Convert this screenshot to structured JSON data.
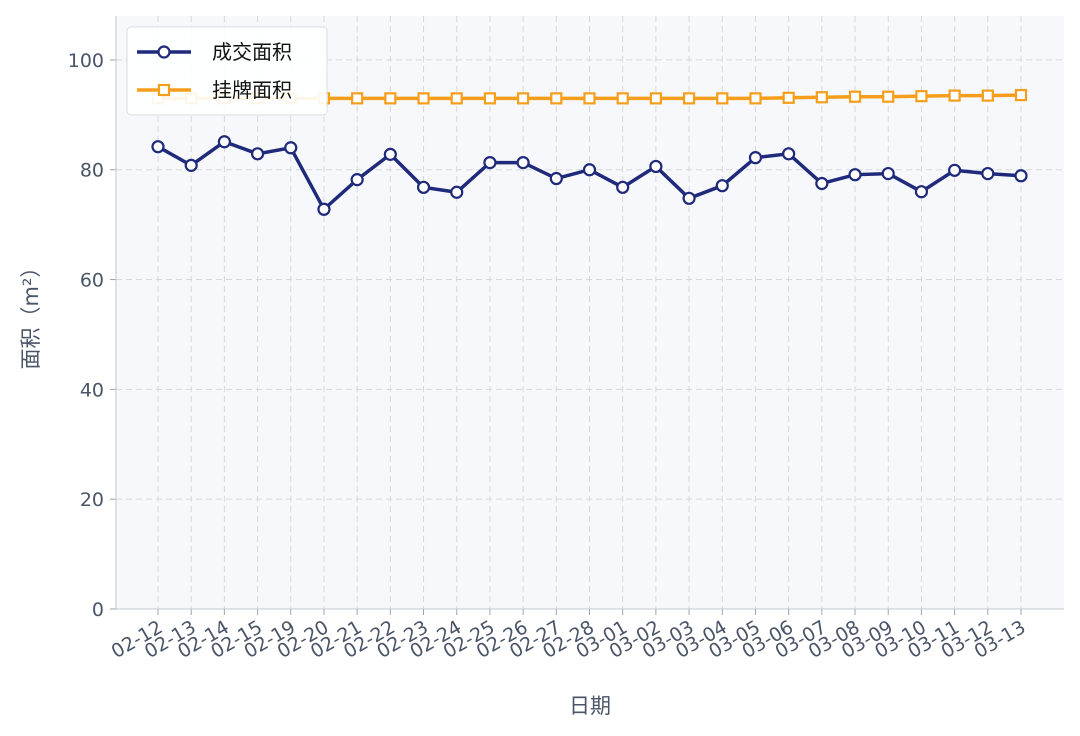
{
  "chart_data": {
    "type": "line",
    "xlabel": "日期",
    "ylabel": "面积（m²）",
    "categories": [
      "02-12",
      "02-13",
      "02-14",
      "02-15",
      "02-19",
      "02-20",
      "02-21",
      "02-22",
      "02-23",
      "02-24",
      "02-25",
      "02-26",
      "02-27",
      "02-28",
      "03-01",
      "03-02",
      "03-03",
      "03-04",
      "03-05",
      "03-06",
      "03-07",
      "03-08",
      "03-09",
      "03-10",
      "03-11",
      "03-12",
      "03-13"
    ],
    "series": [
      {
        "name": "成交面积",
        "color": "#1f2a7a",
        "marker": "circle",
        "values": [
          84.2,
          80.8,
          85.1,
          82.9,
          84.0,
          72.8,
          78.2,
          82.8,
          76.8,
          75.9,
          81.3,
          81.3,
          78.4,
          80.0,
          76.8,
          80.6,
          74.8,
          77.1,
          82.2,
          82.9,
          77.5,
          79.1,
          79.3,
          76.0,
          79.9,
          79.3,
          78.9
        ]
      },
      {
        "name": "挂牌面积",
        "color": "#f59e1b",
        "marker": "square",
        "values": [
          93.0,
          93.0,
          93.0,
          93.0,
          93.0,
          93.0,
          93.0,
          93.0,
          93.0,
          93.0,
          93.0,
          93.0,
          93.0,
          93.0,
          93.0,
          93.0,
          93.0,
          93.0,
          93.0,
          93.1,
          93.2,
          93.3,
          93.3,
          93.4,
          93.5,
          93.5,
          93.6
        ]
      }
    ],
    "ylim": [
      0,
      108
    ],
    "yticks": [
      0,
      20,
      40,
      60,
      80,
      100
    ],
    "grid": true,
    "legend": "upper left"
  }
}
